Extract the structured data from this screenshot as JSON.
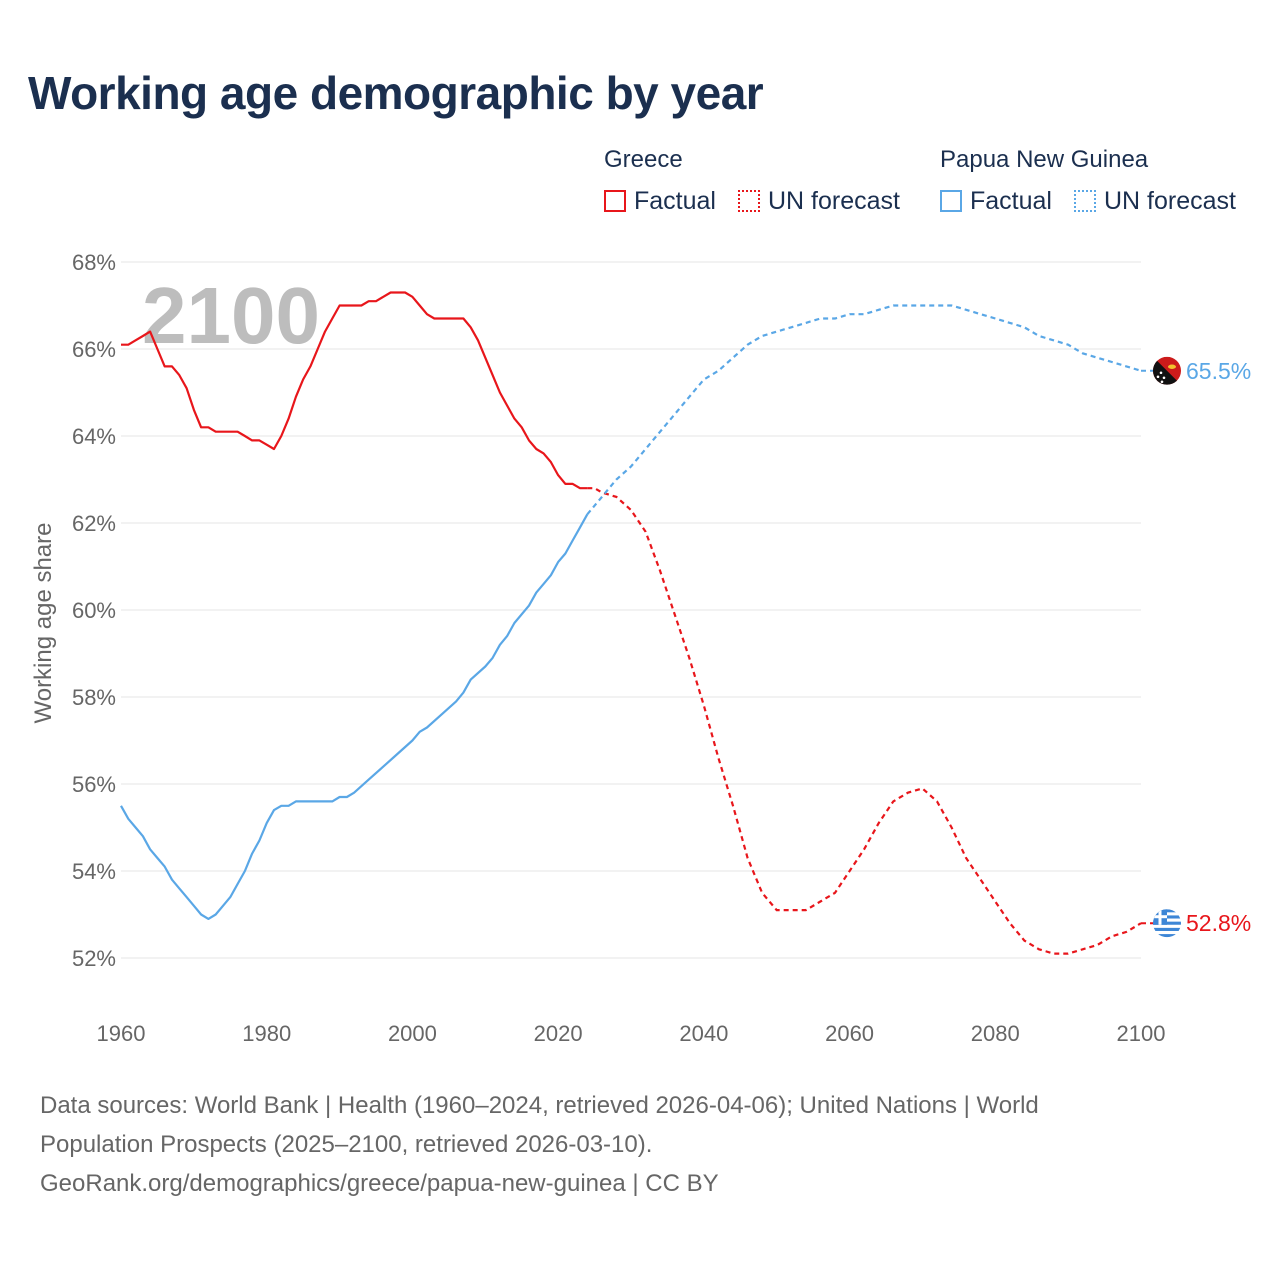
{
  "title": "Working age demographic by year",
  "legend": {
    "groups": [
      {
        "name": "Greece",
        "color": "#e8161b",
        "items": [
          {
            "label": "Factual",
            "style": "solid"
          },
          {
            "label": "UN forecast",
            "style": "dotted"
          }
        ]
      },
      {
        "name": "Papua New Guinea",
        "color": "#5aa7e6",
        "items": [
          {
            "label": "Factual",
            "style": "solid"
          },
          {
            "label": "UN forecast",
            "style": "dotted"
          }
        ]
      }
    ]
  },
  "sources": {
    "line1": "Data sources: World Bank | Health (1960–2024, retrieved 2026-04-06); United Nations | World",
    "line2": "Population Prospects (2025–2100, retrieved 2026-03-10).",
    "line3": "GeoRank.org/demographics/greece/papua-new-guinea | CC BY"
  },
  "colors": {
    "greece": "#e8161b",
    "png": "#5aa7e6",
    "text": "#1b2f4f",
    "grid": "#e6e6e6"
  },
  "chart_data": {
    "type": "line",
    "year_overlay": "2100",
    "ylabel": "Working age share",
    "xlim": [
      1960,
      2100
    ],
    "ylim": [
      51,
      68
    ],
    "x_ticks": [
      "1960",
      "1980",
      "2000",
      "2020",
      "2040",
      "2060",
      "2080",
      "2100"
    ],
    "y_ticks": [
      "52%",
      "54%",
      "56%",
      "58%",
      "60%",
      "62%",
      "64%",
      "66%",
      "68%"
    ],
    "factual_end_year": 2024,
    "series": [
      {
        "name": "Greece",
        "color": "#e8161b",
        "end_label": "52.8%",
        "flag_icon": "greece-flag-icon",
        "points": [
          [
            1960,
            66.1
          ],
          [
            1961,
            66.1
          ],
          [
            1962,
            66.2
          ],
          [
            1963,
            66.3
          ],
          [
            1964,
            66.4
          ],
          [
            1965,
            66.0
          ],
          [
            1966,
            65.6
          ],
          [
            1967,
            65.6
          ],
          [
            1968,
            65.4
          ],
          [
            1969,
            65.1
          ],
          [
            1970,
            64.6
          ],
          [
            1971,
            64.2
          ],
          [
            1972,
            64.2
          ],
          [
            1973,
            64.1
          ],
          [
            1975,
            64.1
          ],
          [
            1976,
            64.1
          ],
          [
            1977,
            64.0
          ],
          [
            1978,
            63.9
          ],
          [
            1979,
            63.9
          ],
          [
            1980,
            63.8
          ],
          [
            1981,
            63.7
          ],
          [
            1982,
            64.0
          ],
          [
            1983,
            64.4
          ],
          [
            1984,
            64.9
          ],
          [
            1985,
            65.3
          ],
          [
            1986,
            65.6
          ],
          [
            1987,
            66.0
          ],
          [
            1988,
            66.4
          ],
          [
            1989,
            66.7
          ],
          [
            1990,
            67.0
          ],
          [
            1991,
            67.0
          ],
          [
            1993,
            67.0
          ],
          [
            1994,
            67.1
          ],
          [
            1995,
            67.1
          ],
          [
            1996,
            67.2
          ],
          [
            1997,
            67.3
          ],
          [
            1999,
            67.3
          ],
          [
            2000,
            67.2
          ],
          [
            2001,
            67.0
          ],
          [
            2002,
            66.8
          ],
          [
            2003,
            66.7
          ],
          [
            2007,
            66.7
          ],
          [
            2008,
            66.5
          ],
          [
            2009,
            66.2
          ],
          [
            2010,
            65.8
          ],
          [
            2011,
            65.4
          ],
          [
            2012,
            65.0
          ],
          [
            2013,
            64.7
          ],
          [
            2014,
            64.4
          ],
          [
            2015,
            64.2
          ],
          [
            2016,
            63.9
          ],
          [
            2017,
            63.7
          ],
          [
            2018,
            63.6
          ],
          [
            2019,
            63.4
          ],
          [
            2020,
            63.1
          ],
          [
            2021,
            62.9
          ],
          [
            2022,
            62.9
          ],
          [
            2023,
            62.8
          ],
          [
            2024,
            62.8
          ],
          [
            2025,
            62.8
          ],
          [
            2026,
            62.7
          ],
          [
            2028,
            62.6
          ],
          [
            2030,
            62.3
          ],
          [
            2032,
            61.8
          ],
          [
            2034,
            60.9
          ],
          [
            2036,
            59.9
          ],
          [
            2038,
            58.9
          ],
          [
            2040,
            57.8
          ],
          [
            2042,
            56.6
          ],
          [
            2044,
            55.5
          ],
          [
            2046,
            54.3
          ],
          [
            2048,
            53.5
          ],
          [
            2050,
            53.1
          ],
          [
            2054,
            53.1
          ],
          [
            2056,
            53.3
          ],
          [
            2058,
            53.5
          ],
          [
            2060,
            54.0
          ],
          [
            2062,
            54.5
          ],
          [
            2064,
            55.1
          ],
          [
            2066,
            55.6
          ],
          [
            2068,
            55.8
          ],
          [
            2070,
            55.9
          ],
          [
            2072,
            55.6
          ],
          [
            2074,
            55.0
          ],
          [
            2076,
            54.3
          ],
          [
            2078,
            53.8
          ],
          [
            2080,
            53.3
          ],
          [
            2082,
            52.8
          ],
          [
            2084,
            52.4
          ],
          [
            2086,
            52.2
          ],
          [
            2088,
            52.1
          ],
          [
            2090,
            52.1
          ],
          [
            2092,
            52.2
          ],
          [
            2094,
            52.3
          ],
          [
            2096,
            52.5
          ],
          [
            2098,
            52.6
          ],
          [
            2100,
            52.8
          ]
        ]
      },
      {
        "name": "Papua New Guinea",
        "color": "#5aa7e6",
        "end_label": "65.5%",
        "flag_icon": "png-flag-icon",
        "points": [
          [
            1960,
            55.5
          ],
          [
            1961,
            55.2
          ],
          [
            1962,
            55.0
          ],
          [
            1963,
            54.8
          ],
          [
            1964,
            54.5
          ],
          [
            1965,
            54.3
          ],
          [
            1966,
            54.1
          ],
          [
            1967,
            53.8
          ],
          [
            1968,
            53.6
          ],
          [
            1969,
            53.4
          ],
          [
            1970,
            53.2
          ],
          [
            1971,
            53.0
          ],
          [
            1972,
            52.9
          ],
          [
            1973,
            53.0
          ],
          [
            1974,
            53.2
          ],
          [
            1975,
            53.4
          ],
          [
            1976,
            53.7
          ],
          [
            1977,
            54.0
          ],
          [
            1978,
            54.4
          ],
          [
            1979,
            54.7
          ],
          [
            1980,
            55.1
          ],
          [
            1981,
            55.4
          ],
          [
            1982,
            55.5
          ],
          [
            1983,
            55.5
          ],
          [
            1984,
            55.6
          ],
          [
            1985,
            55.6
          ],
          [
            1989,
            55.6
          ],
          [
            1990,
            55.7
          ],
          [
            1991,
            55.7
          ],
          [
            1992,
            55.8
          ],
          [
            1994,
            56.1
          ],
          [
            1996,
            56.4
          ],
          [
            1998,
            56.7
          ],
          [
            2000,
            57.0
          ],
          [
            2001,
            57.2
          ],
          [
            2002,
            57.3
          ],
          [
            2004,
            57.6
          ],
          [
            2006,
            57.9
          ],
          [
            2007,
            58.1
          ],
          [
            2008,
            58.4
          ],
          [
            2010,
            58.7
          ],
          [
            2011,
            58.9
          ],
          [
            2012,
            59.2
          ],
          [
            2013,
            59.4
          ],
          [
            2014,
            59.7
          ],
          [
            2016,
            60.1
          ],
          [
            2017,
            60.4
          ],
          [
            2018,
            60.6
          ],
          [
            2019,
            60.8
          ],
          [
            2020,
            61.1
          ],
          [
            2021,
            61.3
          ],
          [
            2022,
            61.6
          ],
          [
            2023,
            61.9
          ],
          [
            2024,
            62.2
          ],
          [
            2026,
            62.6
          ],
          [
            2028,
            63.0
          ],
          [
            2030,
            63.3
          ],
          [
            2032,
            63.7
          ],
          [
            2034,
            64.1
          ],
          [
            2036,
            64.5
          ],
          [
            2038,
            64.9
          ],
          [
            2040,
            65.3
          ],
          [
            2042,
            65.5
          ],
          [
            2044,
            65.8
          ],
          [
            2046,
            66.1
          ],
          [
            2048,
            66.3
          ],
          [
            2050,
            66.4
          ],
          [
            2052,
            66.5
          ],
          [
            2054,
            66.6
          ],
          [
            2056,
            66.7
          ],
          [
            2058,
            66.7
          ],
          [
            2060,
            66.8
          ],
          [
            2062,
            66.8
          ],
          [
            2064,
            66.9
          ],
          [
            2066,
            67.0
          ],
          [
            2074,
            67.0
          ],
          [
            2076,
            66.9
          ],
          [
            2078,
            66.8
          ],
          [
            2080,
            66.7
          ],
          [
            2082,
            66.6
          ],
          [
            2084,
            66.5
          ],
          [
            2086,
            66.3
          ],
          [
            2088,
            66.2
          ],
          [
            2090,
            66.1
          ],
          [
            2092,
            65.9
          ],
          [
            2094,
            65.8
          ],
          [
            2096,
            65.7
          ],
          [
            2098,
            65.6
          ],
          [
            2100,
            65.5
          ]
        ]
      }
    ]
  }
}
